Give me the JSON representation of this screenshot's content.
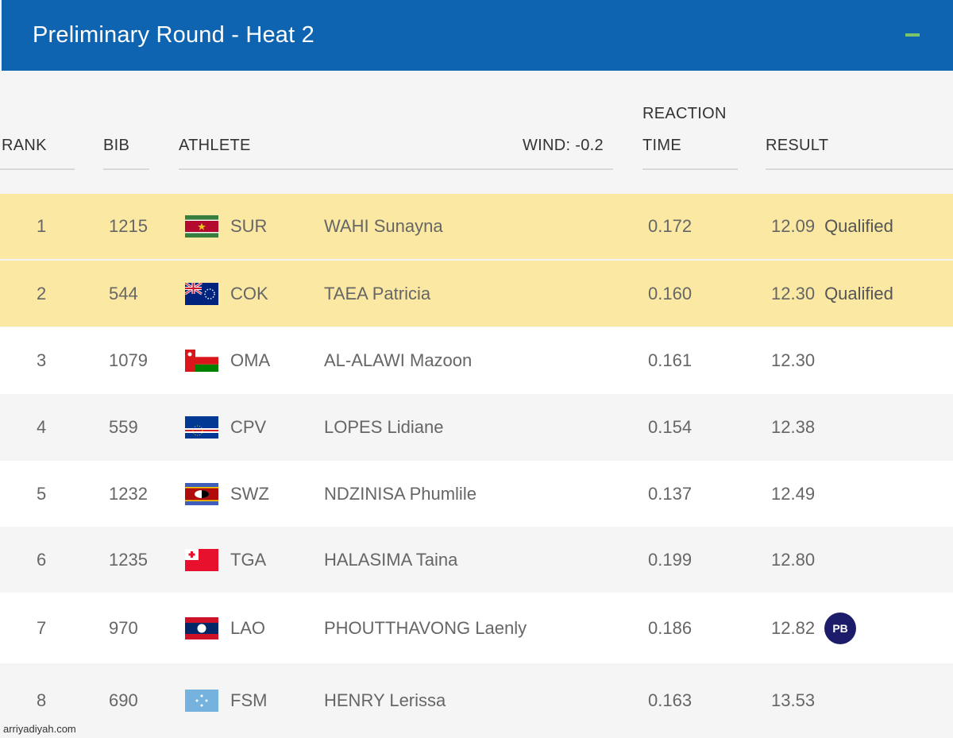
{
  "header": {
    "title": "Preliminary Round - Heat 2"
  },
  "columns": {
    "rank": "RANK",
    "bib": "BIB",
    "athlete": "ATHLETE",
    "wind": "WIND: -0.2",
    "reaction_line1": "REACTION",
    "reaction_line2": "TIME",
    "result": "RESULT"
  },
  "rows": [
    {
      "rank": "1",
      "bib": "1215",
      "country": "SUR",
      "flag_icon": "suriname-flag-icon",
      "athlete": "WAHI Sunayna",
      "reaction": "0.172",
      "result": "12.09",
      "note": "Qualified"
    },
    {
      "rank": "2",
      "bib": "544",
      "country": "COK",
      "flag_icon": "cook-islands-flag-icon",
      "athlete": "TAEA Patricia",
      "reaction": "0.160",
      "result": "12.30",
      "note": "Qualified"
    },
    {
      "rank": "3",
      "bib": "1079",
      "country": "OMA",
      "flag_icon": "oman-flag-icon",
      "athlete": "AL-ALAWI Mazoon",
      "reaction": "0.161",
      "result": "12.30",
      "note": ""
    },
    {
      "rank": "4",
      "bib": "559",
      "country": "CPV",
      "flag_icon": "cape-verde-flag-icon",
      "athlete": "LOPES Lidiane",
      "reaction": "0.154",
      "result": "12.38",
      "note": ""
    },
    {
      "rank": "5",
      "bib": "1232",
      "country": "SWZ",
      "flag_icon": "eswatini-flag-icon",
      "athlete": "NDZINISA Phumlile",
      "reaction": "0.137",
      "result": "12.49",
      "note": ""
    },
    {
      "rank": "6",
      "bib": "1235",
      "country": "TGA",
      "flag_icon": "tonga-flag-icon",
      "athlete": "HALASIMA Taina",
      "reaction": "0.199",
      "result": "12.80",
      "note": ""
    },
    {
      "rank": "7",
      "bib": "970",
      "country": "LAO",
      "flag_icon": "laos-flag-icon",
      "athlete": "PHOUTTHAVONG Laenly",
      "reaction": "0.186",
      "result": "12.82",
      "note": "",
      "badge": "PB"
    },
    {
      "rank": "8",
      "bib": "690",
      "country": "FSM",
      "flag_icon": "micronesia-flag-icon",
      "athlete": "HENRY Lerissa",
      "reaction": "0.163",
      "result": "13.53",
      "note": ""
    }
  ],
  "colors": {
    "header_bg": "#0f64b1",
    "qualified_bg": "#fbe9a3",
    "pb_badge_bg": "#1c1c6b",
    "collapse_icon": "#7cc46a"
  },
  "watermark": "arriyadiyah.com"
}
